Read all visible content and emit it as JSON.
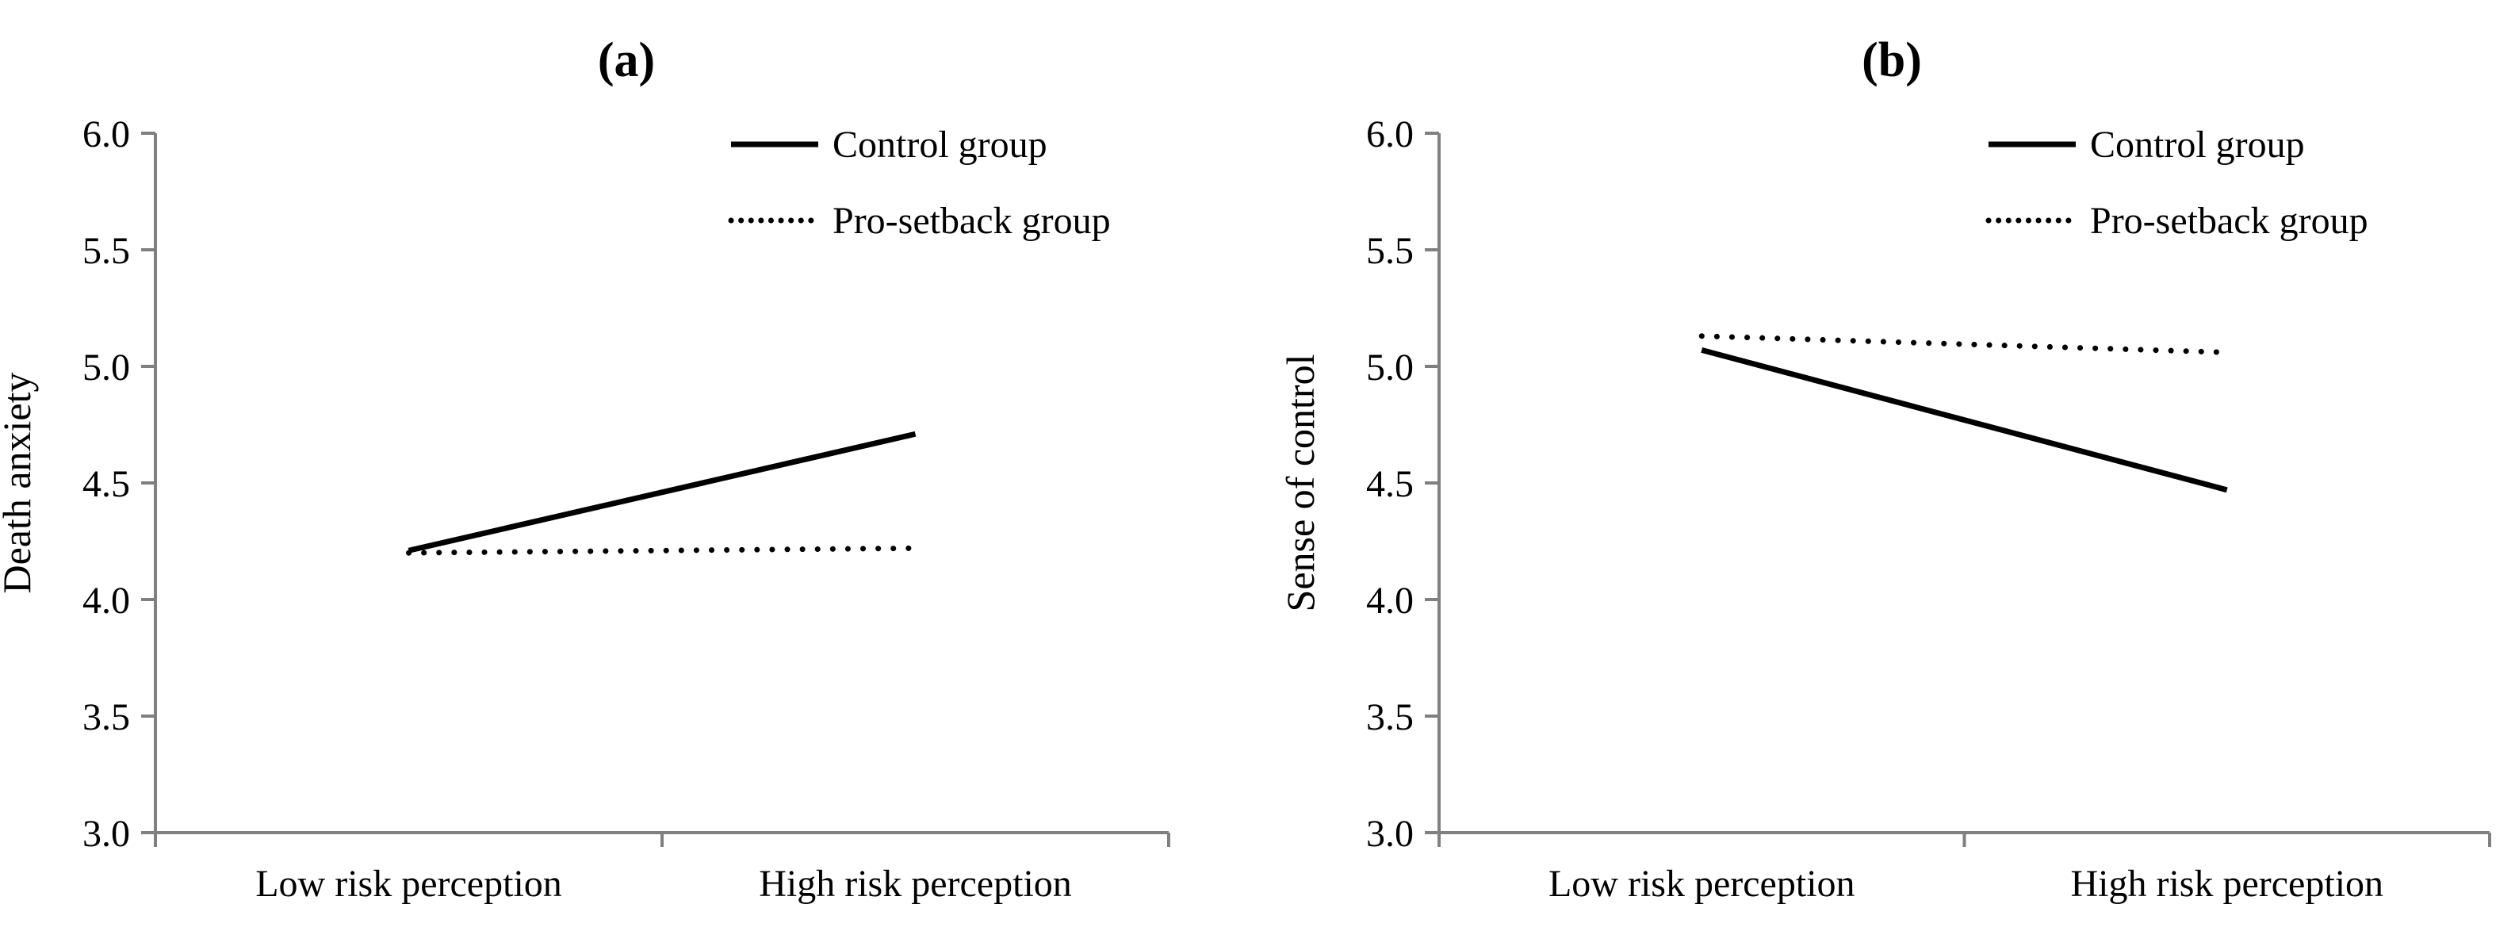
{
  "colors": {
    "axis": "#808080",
    "series_line": "#000000",
    "text": "#000000",
    "background": "#ffffff"
  },
  "chart_data": [
    {
      "type": "line",
      "title": "(a)",
      "xlabel": "",
      "ylabel": "Death anxiety",
      "categories": [
        "Low risk perception",
        "High risk perception"
      ],
      "series": [
        {
          "name": "Control group",
          "line_style": "solid",
          "values": [
            4.21,
            4.71
          ]
        },
        {
          "name": "Pro-setback group",
          "line_style": "dotted",
          "values": [
            4.2,
            4.22
          ]
        }
      ],
      "ylim": [
        3.0,
        6.0
      ],
      "ytick_labels": [
        "6.0",
        "5.5",
        "5.0",
        "4.5",
        "4.0",
        "3.5",
        "3.0"
      ],
      "grid": false,
      "legend_position": "top-right"
    },
    {
      "type": "line",
      "title": "(b)",
      "xlabel": "",
      "ylabel": "Sense of control",
      "categories": [
        "Low risk perception",
        "High risk perception"
      ],
      "series": [
        {
          "name": "Control group",
          "line_style": "solid",
          "values": [
            5.07,
            4.47
          ]
        },
        {
          "name": "Pro-setback group",
          "line_style": "dotted",
          "values": [
            5.13,
            5.06
          ]
        }
      ],
      "ylim": [
        3.0,
        6.0
      ],
      "ytick_labels": [
        "6.0",
        "5.5",
        "5.0",
        "4.5",
        "4.0",
        "3.5",
        "3.0"
      ],
      "grid": false,
      "legend_position": "top-right"
    }
  ]
}
